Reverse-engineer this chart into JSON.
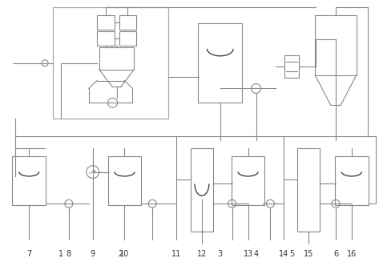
{
  "bg_color": "#ffffff",
  "lc": "#888888",
  "lw": 0.8,
  "figsize": [
    4.78,
    3.27
  ],
  "dpi": 100
}
